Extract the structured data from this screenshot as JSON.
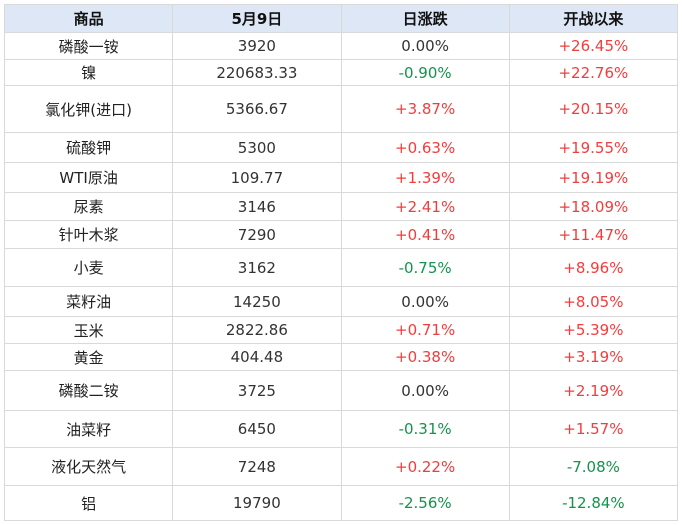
{
  "colors": {
    "up": "#f43c3c",
    "down": "#12944a",
    "flat": "#333333",
    "header_bg": "#dde7f6",
    "header_text": "#111111",
    "border": "#d9d9d9"
  },
  "table": {
    "columns": [
      {
        "label": "商品"
      },
      {
        "label": "5月9日"
      },
      {
        "label": "日涨跌"
      },
      {
        "label": "开战以来"
      }
    ],
    "rows": [
      {
        "name": "磷酸一铵",
        "price": "3920",
        "daily": "0.00%",
        "daily_dir": "flat",
        "since": "+26.45%",
        "since_dir": "up"
      },
      {
        "name": "镍",
        "price": "220683.33",
        "daily": "-0.90%",
        "daily_dir": "down",
        "since": "+22.76%",
        "since_dir": "up"
      },
      {
        "name": "氯化钾(进口)",
        "price": "5366.67",
        "daily": "+3.87%",
        "daily_dir": "up",
        "since": "+20.15%",
        "since_dir": "up"
      },
      {
        "name": "硫酸钾",
        "price": "5300",
        "daily": "+0.63%",
        "daily_dir": "up",
        "since": "+19.55%",
        "since_dir": "up"
      },
      {
        "name": "WTI原油",
        "price": "109.77",
        "daily": "+1.39%",
        "daily_dir": "up",
        "since": "+19.19%",
        "since_dir": "up"
      },
      {
        "name": "尿素",
        "price": "3146",
        "daily": "+2.41%",
        "daily_dir": "up",
        "since": "+18.09%",
        "since_dir": "up"
      },
      {
        "name": "针叶木浆",
        "price": "7290",
        "daily": "+0.41%",
        "daily_dir": "up",
        "since": "+11.47%",
        "since_dir": "up"
      },
      {
        "name": "小麦",
        "price": "3162",
        "daily": "-0.75%",
        "daily_dir": "down",
        "since": "+8.96%",
        "since_dir": "up"
      },
      {
        "name": "菜籽油",
        "price": "14250",
        "daily": "0.00%",
        "daily_dir": "flat",
        "since": "+8.05%",
        "since_dir": "up"
      },
      {
        "name": "玉米",
        "price": "2822.86",
        "daily": "+0.71%",
        "daily_dir": "up",
        "since": "+5.39%",
        "since_dir": "up"
      },
      {
        "name": "黄金",
        "price": "404.48",
        "daily": "+0.38%",
        "daily_dir": "up",
        "since": "+3.19%",
        "since_dir": "up"
      },
      {
        "name": "磷酸二铵",
        "price": "3725",
        "daily": "0.00%",
        "daily_dir": "flat",
        "since": "+2.19%",
        "since_dir": "up"
      },
      {
        "name": "油菜籽",
        "price": "6450",
        "daily": "-0.31%",
        "daily_dir": "down",
        "since": "+1.57%",
        "since_dir": "up"
      },
      {
        "name": "液化天然气",
        "price": "7248",
        "daily": "+0.22%",
        "daily_dir": "up",
        "since": "-7.08%",
        "since_dir": "down"
      },
      {
        "name": "铝",
        "price": "19790",
        "daily": "-2.56%",
        "daily_dir": "down",
        "since": "-12.84%",
        "since_dir": "down"
      }
    ]
  },
  "chart_data": {
    "type": "table",
    "columns": [
      "商品",
      "5月9日",
      "日涨跌",
      "开战以来"
    ],
    "rows": [
      [
        "磷酸一铵",
        3920,
        "0.00%",
        "+26.45%"
      ],
      [
        "镍",
        220683.33,
        "-0.90%",
        "+22.76%"
      ],
      [
        "氯化钾(进口)",
        5366.67,
        "+3.87%",
        "+20.15%"
      ],
      [
        "硫酸钾",
        5300,
        "+0.63%",
        "+19.55%"
      ],
      [
        "WTI原油",
        109.77,
        "+1.39%",
        "+19.19%"
      ],
      [
        "尿素",
        3146,
        "+2.41%",
        "+18.09%"
      ],
      [
        "针叶木浆",
        7290,
        "+0.41%",
        "+11.47%"
      ],
      [
        "小麦",
        3162,
        "-0.75%",
        "+8.96%"
      ],
      [
        "菜籽油",
        14250,
        "0.00%",
        "+8.05%"
      ],
      [
        "玉米",
        2822.86,
        "+0.71%",
        "+5.39%"
      ],
      [
        "黄金",
        404.48,
        "+0.38%",
        "+3.19%"
      ],
      [
        "磷酸二铵",
        3725,
        "0.00%",
        "+2.19%"
      ],
      [
        "油菜籽",
        6450,
        "-0.31%",
        "+1.57%"
      ],
      [
        "液化天然气",
        7248,
        "+0.22%",
        "-7.08%"
      ],
      [
        "铝",
        19790,
        "-2.56%",
        "-12.84%"
      ]
    ],
    "legend": "red = rise, green = fall, black = unchanged"
  }
}
